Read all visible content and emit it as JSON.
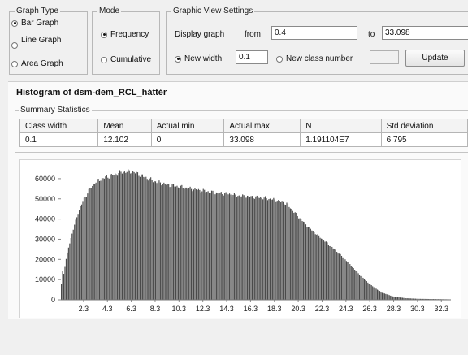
{
  "graph_type": {
    "legend": "Graph Type",
    "options": [
      {
        "label": "Bar Graph",
        "selected": true
      },
      {
        "label": "Line Graph",
        "selected": false
      },
      {
        "label": "Area Graph",
        "selected": false
      }
    ]
  },
  "mode": {
    "legend": "Mode",
    "options": [
      {
        "label": "Frequency",
        "selected": true
      },
      {
        "label": "Cumulative",
        "selected": false
      }
    ]
  },
  "view_settings": {
    "legend": "Graphic View Settings",
    "display_label": "Display graph",
    "from_label": "from",
    "from_value": "0.4",
    "to_label": "to",
    "to_value": "33.098",
    "new_width_label": "New width",
    "new_width_value": "0.1",
    "new_class_label": "New class number",
    "new_class_value": "",
    "update_label": "Update"
  },
  "histogram_title": "Histogram of dsm-dem_RCL_háttér",
  "summary": {
    "legend": "Summary Statistics",
    "headers": [
      "Class width",
      "Mean",
      "Actual min",
      "Actual max",
      "N",
      "Std deviation"
    ],
    "values": [
      "0.1",
      "12.102",
      "0",
      "33.098",
      "1.191104E7",
      "6.795"
    ]
  },
  "chart_data": {
    "type": "bar",
    "title": "",
    "xlabel": "",
    "ylabel": "",
    "ylim": [
      0,
      66000
    ],
    "xlim": [
      0.4,
      33.1
    ],
    "yticks": [
      0,
      10000,
      20000,
      30000,
      40000,
      50000,
      60000
    ],
    "xticks": [
      "2.3",
      "4.3",
      "6.3",
      "8.3",
      "10.3",
      "12.3",
      "14.3",
      "16.3",
      "18.3",
      "20.3",
      "22.3",
      "24.3",
      "26.3",
      "28.3",
      "30.3",
      "32.3"
    ],
    "bar_color": "#4a4a4a",
    "class_width": 0.1,
    "x": [
      0.4,
      0.5,
      0.6,
      0.8,
      1.0,
      1.4,
      1.8,
      2.3,
      2.8,
      3.3,
      3.8,
      4.3,
      4.8,
      5.3,
      5.8,
      6.3,
      6.8,
      7.3,
      8.3,
      9.3,
      10.3,
      11.3,
      12.3,
      13.3,
      14.3,
      15.3,
      16.3,
      17.3,
      18.3,
      19.3,
      20.3,
      21.3,
      22.3,
      23.3,
      24.3,
      25.3,
      26.3,
      27.3,
      28.3,
      29.3,
      30.3,
      31.3,
      32.3,
      33.1
    ],
    "values": [
      8000,
      14000,
      13000,
      20000,
      26000,
      35000,
      43000,
      50000,
      55000,
      58500,
      60000,
      61000,
      62000,
      63000,
      63500,
      63500,
      62500,
      61000,
      58500,
      57000,
      56000,
      55000,
      54000,
      53000,
      52500,
      51500,
      51000,
      50500,
      49500,
      47500,
      41000,
      35000,
      30000,
      25000,
      19500,
      13000,
      7500,
      3500,
      1500,
      800,
      500,
      400,
      300,
      200
    ]
  }
}
